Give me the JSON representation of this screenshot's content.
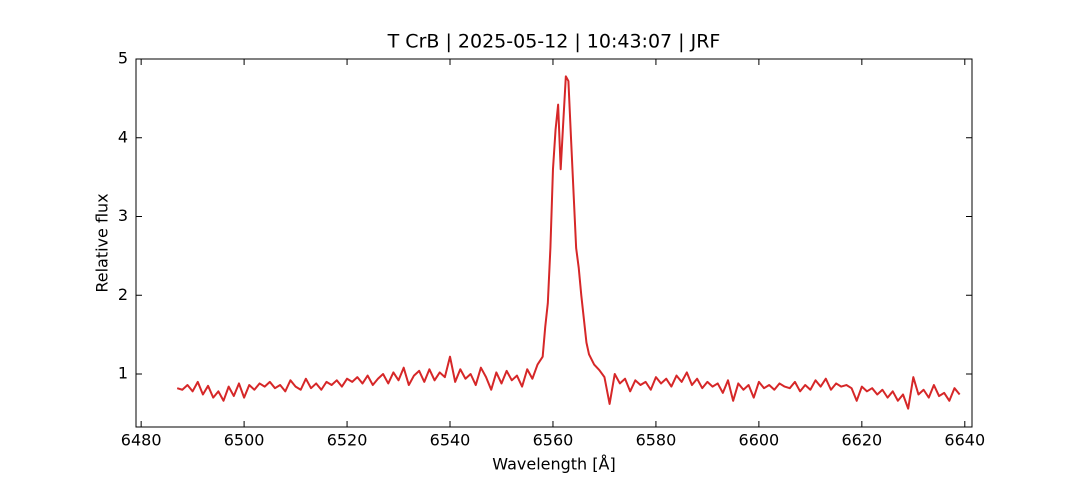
{
  "chart_data": {
    "type": "line",
    "title": "T CrB | 2025-05-12 | 10:43:07 | JRF",
    "xlabel": "Wavelength [Å]",
    "ylabel": "Relative flux",
    "xlim": [
      6479.0,
      6641.4
    ],
    "ylim": [
      0.327,
      5
    ],
    "xticks": [
      6480,
      6500,
      6520,
      6540,
      6560,
      6580,
      6600,
      6620,
      6640
    ],
    "yticks": [
      1,
      2,
      3,
      4,
      5
    ],
    "grid": false,
    "series": [
      {
        "color": "#d62728",
        "x": [
          6487,
          6488,
          6489,
          6490,
          6491,
          6492,
          6493,
          6494,
          6495,
          6496,
          6497,
          6498,
          6499,
          6500,
          6501,
          6502,
          6503,
          6504,
          6505,
          6506,
          6507,
          6508,
          6509,
          6510,
          6511,
          6512,
          6513,
          6514,
          6515,
          6516,
          6517,
          6518,
          6519,
          6520,
          6521,
          6522,
          6523,
          6524,
          6525,
          6526,
          6527,
          6528,
          6529,
          6530,
          6531,
          6532,
          6533,
          6534,
          6535,
          6536,
          6537,
          6538,
          6539,
          6540,
          6541,
          6542,
          6543,
          6544,
          6545,
          6546,
          6547,
          6548,
          6549,
          6550,
          6551,
          6552,
          6553,
          6554,
          6555,
          6556,
          6557,
          6558,
          6558.5,
          6559,
          6559.5,
          6560,
          6560.5,
          6561,
          6561.5,
          6562,
          6562.5,
          6563,
          6563.5,
          6564,
          6564.5,
          6565,
          6565.5,
          6566,
          6566.5,
          6567,
          6568,
          6569,
          6570,
          6571,
          6572,
          6573,
          6574,
          6575,
          6576,
          6577,
          6578,
          6579,
          6580,
          6581,
          6582,
          6583,
          6584,
          6585,
          6586,
          6587,
          6588,
          6589,
          6590,
          6591,
          6592,
          6593,
          6594,
          6595,
          6596,
          6597,
          6598,
          6599,
          6600,
          6601,
          6602,
          6603,
          6604,
          6605,
          6606,
          6607,
          6608,
          6609,
          6610,
          6611,
          6612,
          6613,
          6614,
          6615,
          6616,
          6617,
          6618,
          6619,
          6620,
          6621,
          6622,
          6623,
          6624,
          6625,
          6626,
          6627,
          6628,
          6629,
          6630,
          6631,
          6632,
          6633,
          6634,
          6635,
          6636,
          6637,
          6638,
          6639
        ],
        "values": [
          0.82,
          0.8,
          0.86,
          0.78,
          0.9,
          0.74,
          0.85,
          0.7,
          0.78,
          0.66,
          0.84,
          0.72,
          0.88,
          0.7,
          0.86,
          0.8,
          0.88,
          0.84,
          0.9,
          0.82,
          0.86,
          0.78,
          0.92,
          0.84,
          0.8,
          0.94,
          0.82,
          0.88,
          0.8,
          0.9,
          0.86,
          0.92,
          0.84,
          0.94,
          0.9,
          0.96,
          0.88,
          0.98,
          0.86,
          0.94,
          1.0,
          0.88,
          1.02,
          0.92,
          1.08,
          0.86,
          0.98,
          1.04,
          0.9,
          1.06,
          0.92,
          1.02,
          0.96,
          1.22,
          0.9,
          1.06,
          0.94,
          1.0,
          0.86,
          1.08,
          0.96,
          0.8,
          1.02,
          0.88,
          1.04,
          0.92,
          0.98,
          0.84,
          1.06,
          0.94,
          1.12,
          1.22,
          1.6,
          1.9,
          2.6,
          3.6,
          4.1,
          4.42,
          3.6,
          4.2,
          4.78,
          4.72,
          4.0,
          3.3,
          2.6,
          2.35,
          2.0,
          1.7,
          1.4,
          1.25,
          1.12,
          1.05,
          0.96,
          0.62,
          1.0,
          0.88,
          0.94,
          0.78,
          0.92,
          0.86,
          0.9,
          0.8,
          0.96,
          0.88,
          0.94,
          0.84,
          0.98,
          0.9,
          1.02,
          0.86,
          0.94,
          0.82,
          0.9,
          0.84,
          0.88,
          0.76,
          0.92,
          0.66,
          0.88,
          0.8,
          0.86,
          0.7,
          0.9,
          0.82,
          0.86,
          0.8,
          0.88,
          0.84,
          0.82,
          0.9,
          0.78,
          0.86,
          0.8,
          0.92,
          0.84,
          0.94,
          0.8,
          0.88,
          0.84,
          0.86,
          0.82,
          0.66,
          0.84,
          0.78,
          0.82,
          0.74,
          0.8,
          0.7,
          0.78,
          0.66,
          0.74,
          0.56,
          0.96,
          0.74,
          0.8,
          0.7,
          0.86,
          0.72,
          0.76,
          0.66,
          0.82,
          0.74
        ]
      }
    ]
  }
}
